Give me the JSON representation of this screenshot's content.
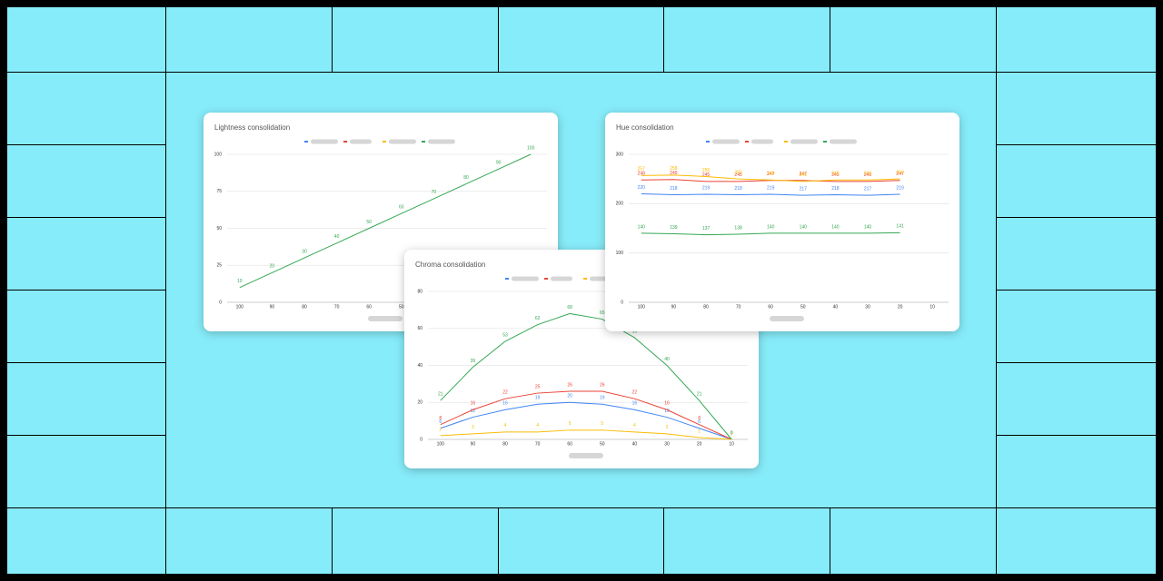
{
  "chart_data": [
    {
      "type": "line",
      "title": "Lightness consolidation",
      "categories": [
        "100",
        "90",
        "80",
        "70",
        "60",
        "50",
        "40",
        "30",
        "20",
        "10"
      ],
      "ylim": [
        0,
        100
      ],
      "yticks": [
        0,
        25,
        50,
        75,
        100
      ],
      "grid": true,
      "series": [
        {
          "color": "#34a853",
          "values": [
            10,
            20,
            30,
            40,
            50,
            60,
            70,
            80,
            90,
            100
          ]
        }
      ]
    },
    {
      "type": "line",
      "title": "Chroma consolidation",
      "categories": [
        "100",
        "90",
        "80",
        "70",
        "60",
        "50",
        "40",
        "30",
        "20",
        "10"
      ],
      "ylim": [
        0,
        80
      ],
      "yticks": [
        0,
        20,
        40,
        60,
        80
      ],
      "grid": true,
      "series": [
        {
          "color": "#4285f4",
          "values": [
            6,
            12,
            16,
            19,
            20,
            19,
            16,
            12,
            6,
            0
          ]
        },
        {
          "color": "#ea4335",
          "values": [
            8,
            16,
            22,
            25,
            26,
            26,
            22,
            16,
            8,
            0
          ]
        },
        {
          "color": "#fbbc04",
          "values": [
            2,
            3,
            4,
            4,
            5,
            5,
            4,
            3,
            1,
            0
          ]
        },
        {
          "color": "#34a853",
          "values": [
            21,
            39,
            53,
            62,
            68,
            65,
            55,
            40,
            21,
            0
          ]
        }
      ]
    },
    {
      "type": "line",
      "title": "Hue consolidation",
      "categories": [
        "100",
        "90",
        "80",
        "70",
        "60",
        "50",
        "40",
        "30",
        "20",
        "10"
      ],
      "ylim": [
        0,
        300
      ],
      "yticks": [
        0,
        100,
        200,
        300
      ],
      "grid": true,
      "series": [
        {
          "color": "#4285f4",
          "values": [
            220,
            218,
            219,
            218,
            219,
            217,
            218,
            217,
            219,
            null
          ]
        },
        {
          "color": "#ea4335",
          "values": [
            248,
            249,
            245,
            245,
            247,
            247,
            245,
            245,
            247,
            null
          ]
        },
        {
          "color": "#fbbc04",
          "values": [
            257,
            258,
            255,
            250,
            248,
            245,
            248,
            248,
            250,
            null
          ]
        },
        {
          "color": "#34a853",
          "values": [
            140,
            139,
            137,
            138,
            140,
            140,
            140,
            140,
            141,
            null
          ]
        }
      ]
    }
  ]
}
